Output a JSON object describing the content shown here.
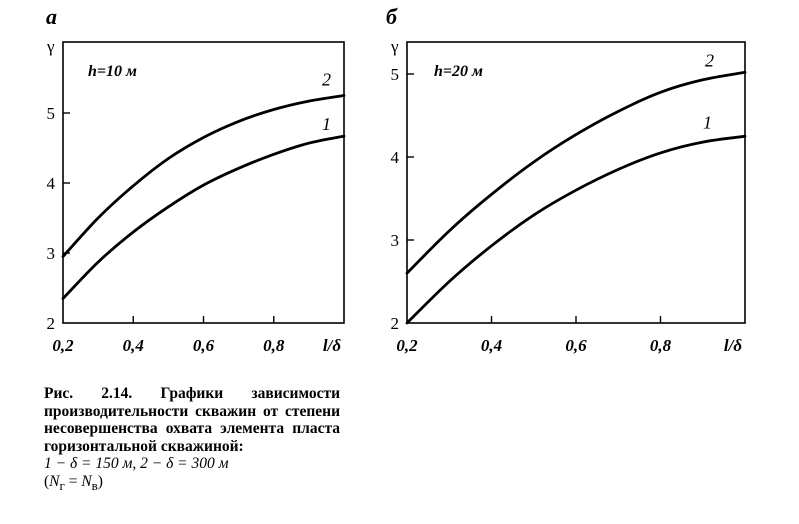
{
  "chart_data": [
    {
      "type": "line",
      "panel_label": "а",
      "annotation": "h=10 м",
      "ylabel": "γ",
      "xlabel": "l/δ",
      "x_ticks": [
        "0,2",
        "0,4",
        "0,6",
        "0,8"
      ],
      "y_ticks": [
        "2",
        "3",
        "4",
        "5"
      ],
      "xlim": [
        0.2,
        1.0
      ],
      "ylim": [
        2,
        6
      ],
      "series": [
        {
          "name": "1",
          "x": [
            0.2,
            0.3,
            0.4,
            0.5,
            0.6,
            0.7,
            0.8,
            0.9,
            1.0
          ],
          "y": [
            2.35,
            2.87,
            3.3,
            3.66,
            3.97,
            4.21,
            4.41,
            4.57,
            4.67
          ]
        },
        {
          "name": "2",
          "x": [
            0.2,
            0.3,
            0.4,
            0.5,
            0.6,
            0.7,
            0.8,
            0.9,
            1.0
          ],
          "y": [
            2.95,
            3.5,
            3.96,
            4.35,
            4.65,
            4.88,
            5.05,
            5.17,
            5.25
          ]
        }
      ]
    },
    {
      "type": "line",
      "panel_label": "б",
      "annotation": "h=20 м",
      "ylabel": "γ",
      "xlabel": "l/δ",
      "x_ticks": [
        "0,2",
        "0,4",
        "0,6",
        "0,8"
      ],
      "y_ticks": [
        "2",
        "3",
        "4",
        "5"
      ],
      "xlim": [
        0.2,
        1.0
      ],
      "ylim": [
        2,
        5.4
      ],
      "series": [
        {
          "name": "1",
          "x": [
            0.2,
            0.3,
            0.4,
            0.5,
            0.6,
            0.7,
            0.8,
            0.9,
            1.0
          ],
          "y": [
            2.0,
            2.5,
            2.93,
            3.3,
            3.6,
            3.85,
            4.05,
            4.18,
            4.25
          ]
        },
        {
          "name": "2",
          "x": [
            0.2,
            0.3,
            0.4,
            0.5,
            0.6,
            0.7,
            0.8,
            0.9,
            1.0
          ],
          "y": [
            2.6,
            3.11,
            3.55,
            3.94,
            4.27,
            4.55,
            4.78,
            4.93,
            5.02
          ]
        }
      ]
    }
  ],
  "caption": {
    "title": "Рис. 2.14. Графики зависимости производительности скважин от степени несовершенства охвата элемента пласта горизонтальной скважиной:",
    "legend_1": "1 − δ = 150 м, 2 − δ = 300 м",
    "legend_2_open": "(",
    "legend_2_n1": "N",
    "legend_2_sub1": "г",
    "legend_2_eq": " = ",
    "legend_2_n2": "N",
    "legend_2_sub2": "в",
    "legend_2_close": ")"
  }
}
